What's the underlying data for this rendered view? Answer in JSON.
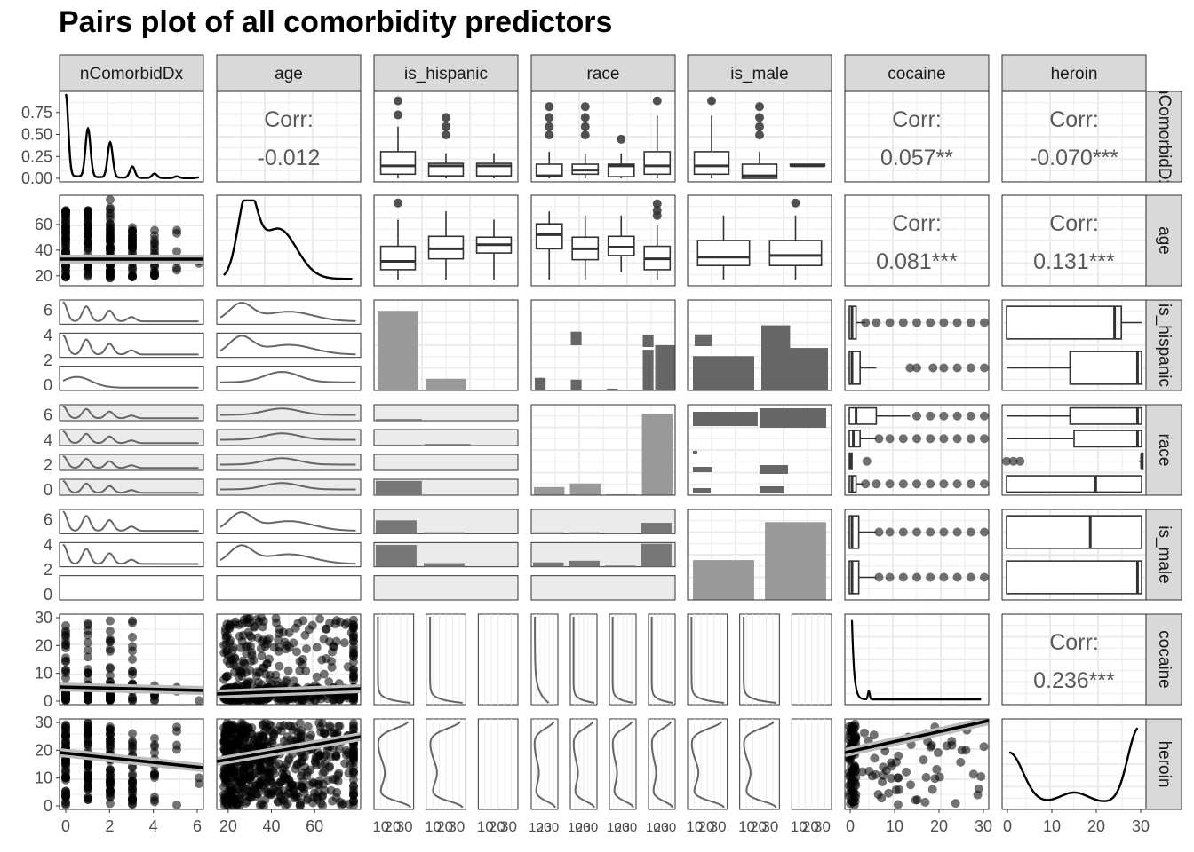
{
  "chart_data": {
    "type": "pairs",
    "title": "Pairs plot of all comorbidity predictors",
    "variables": [
      "nComorbidDx",
      "age",
      "is_hispanic",
      "race",
      "is_male",
      "cocaine",
      "heroin"
    ],
    "row_strip_labels": [
      "nComorbidDx",
      "age",
      "is_hispanic",
      "race",
      "is_male",
      "cocaine",
      "heroin"
    ],
    "corr_label": "Corr:",
    "correlations": [
      {
        "row": "nComorbidDx",
        "col": "age",
        "value": "-0.012"
      },
      {
        "row": "nComorbidDx",
        "col": "cocaine",
        "value": "0.057**"
      },
      {
        "row": "nComorbidDx",
        "col": "heroin",
        "value": "-0.070***"
      },
      {
        "row": "age",
        "col": "cocaine",
        "value": "0.081***"
      },
      {
        "row": "age",
        "col": "heroin",
        "value": "0.131***"
      },
      {
        "row": "cocaine",
        "col": "heroin",
        "value": "0.236***"
      }
    ],
    "y_ticks": {
      "nComorbidDx": [
        "0.00",
        "0.25",
        "0.50",
        "0.75"
      ],
      "age": [
        "20",
        "40",
        "60"
      ],
      "is_hispanic": [
        "0",
        "2",
        "4",
        "6"
      ],
      "race": [
        "0",
        "2",
        "4",
        "6"
      ],
      "is_male": [
        "0",
        "2",
        "4",
        "6"
      ],
      "cocaine": [
        "0",
        "10",
        "20",
        "30"
      ],
      "heroin": [
        "0",
        "10",
        "20",
        "30"
      ]
    },
    "x_ticks": {
      "nComorbidDx": [
        "0",
        "2",
        "4",
        "6"
      ],
      "age": [
        "20",
        "40",
        "60"
      ],
      "cocaine": [
        "0",
        "10",
        "20",
        "30"
      ],
      "heroin": [
        "0",
        "10",
        "20",
        "30"
      ],
      "discrete_sub": [
        "10",
        "20",
        "30"
      ]
    },
    "nComorbidDx_density": {
      "x": [
        0,
        1,
        2,
        3,
        4,
        5,
        6
      ],
      "peaks": [
        0.93,
        0.55,
        0.4,
        0.13,
        0.05,
        0.02,
        0.01
      ]
    },
    "bar_counts": {
      "is_hispanic": [
        0.88,
        0.13,
        0.005
      ],
      "race": [
        0.09,
        0.13,
        0.01,
        0.9
      ],
      "is_male": [
        0.44,
        0.86
      ]
    },
    "scatter_trends": {
      "age_vs_nComorbidDx": {
        "slope": 0.0,
        "intercept": 35.5
      },
      "cocaine_vs_nComorbidDx": {
        "from": [
          0,
          2.5
        ],
        "to": [
          6,
          4.8
        ]
      },
      "heroin_vs_nComorbidDx": {
        "from": [
          0,
          18.5
        ],
        "to": [
          6,
          13.5
        ]
      },
      "cocaine_vs_age": {
        "from": [
          20,
          1.5
        ],
        "to": [
          78,
          4.5
        ]
      },
      "heroin_vs_age": {
        "from": [
          20,
          15
        ],
        "to": [
          78,
          24
        ]
      },
      "heroin_vs_cocaine": {
        "from": [
          0,
          18
        ],
        "to": [
          30,
          30
        ]
      }
    }
  }
}
